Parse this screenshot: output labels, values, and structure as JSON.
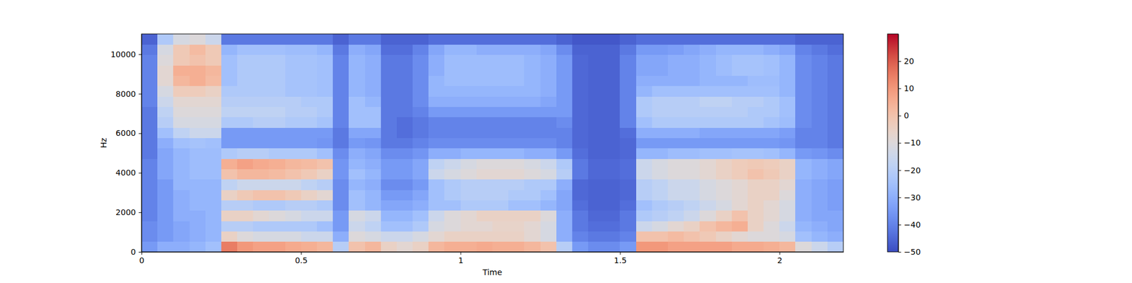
{
  "chart_data": {
    "type": "heatmap",
    "x_label": "Time",
    "y_label": "Hz",
    "color": "coolwarm",
    "xlim": [
      0,
      2.2
    ],
    "ylim": [
      0,
      11025
    ],
    "xticks": [
      0,
      0.5,
      1,
      1.5,
      2
    ],
    "yticks": [
      0,
      2000,
      4000,
      6000,
      8000,
      10000
    ],
    "x_edges": [
      0,
      0.05,
      0.1,
      0.15,
      0.2,
      0.25,
      0.3,
      0.35,
      0.4,
      0.45,
      0.5,
      0.55,
      0.6,
      0.65,
      0.7,
      0.75,
      0.8,
      0.85,
      0.9,
      0.95,
      1,
      1.05,
      1.1,
      1.15,
      1.2,
      1.25,
      1.3,
      1.35,
      1.4,
      1.45,
      1.5,
      1.55,
      1.6,
      1.65,
      1.7,
      1.75,
      1.8,
      1.85,
      1.9,
      1.95,
      2,
      2.05,
      2.1,
      2.15,
      2.2
    ],
    "y_edges": [
      0,
      525,
      1050,
      1575,
      2100,
      2625,
      3150,
      3675,
      4200,
      4725,
      5250,
      5775,
      6300,
      6825,
      7350,
      7875,
      8400,
      8925,
      9450,
      9975,
      10500,
      11025
    ],
    "values": [
      [
        -35,
        -30,
        -30,
        -28,
        -25,
        15,
        10,
        8,
        8,
        6,
        5,
        3,
        -20,
        0,
        3,
        -5,
        -8,
        -5,
        3,
        5,
        5,
        6,
        5,
        5,
        3,
        0,
        -20,
        -35,
        -38,
        -38,
        -35,
        10,
        10,
        8,
        8,
        8,
        8,
        6,
        6,
        5,
        3,
        -10,
        -15,
        -20
      ],
      [
        -38,
        -35,
        -32,
        -30,
        -28,
        -5,
        -10,
        -12,
        -12,
        -12,
        -15,
        -15,
        -30,
        -10,
        -12,
        -15,
        -15,
        -12,
        -8,
        -5,
        -5,
        -5,
        -5,
        -5,
        -8,
        -12,
        -30,
        -40,
        -42,
        -42,
        -40,
        0,
        0,
        2,
        0,
        -2,
        -5,
        -8,
        -10,
        -10,
        -12,
        -25,
        -28,
        -30
      ],
      [
        -38,
        -35,
        -32,
        -30,
        -28,
        -20,
        -20,
        -22,
        -22,
        -22,
        -22,
        -25,
        -35,
        -15,
        -18,
        -25,
        -25,
        -22,
        -12,
        -10,
        -8,
        -8,
        -6,
        -6,
        -8,
        -12,
        -30,
        -42,
        -44,
        -44,
        -42,
        -15,
        -12,
        -8,
        -5,
        0,
        3,
        5,
        -5,
        -10,
        -15,
        -28,
        -30,
        -32
      ],
      [
        -40,
        -35,
        -30,
        -30,
        -28,
        -5,
        -5,
        -8,
        -10,
        -12,
        -15,
        -15,
        -35,
        -12,
        -15,
        -28,
        -28,
        -25,
        -15,
        -10,
        -8,
        -5,
        -5,
        -5,
        -5,
        -10,
        -30,
        -42,
        -45,
        -45,
        -42,
        -22,
        -20,
        -18,
        -15,
        -10,
        -5,
        0,
        -5,
        -8,
        -12,
        -30,
        -32,
        -32
      ],
      [
        -40,
        -35,
        -30,
        -28,
        -28,
        -20,
        -20,
        -22,
        -22,
        -20,
        -20,
        -22,
        -38,
        -25,
        -28,
        -32,
        -32,
        -30,
        -25,
        -25,
        -22,
        -22,
        -22,
        -25,
        -25,
        -28,
        -32,
        -44,
        -46,
        -46,
        -44,
        -25,
        -22,
        -20,
        -18,
        -15,
        -12,
        -8,
        -5,
        -8,
        -12,
        -30,
        -32,
        -34
      ],
      [
        -40,
        -35,
        -30,
        -28,
        -28,
        -5,
        -2,
        0,
        0,
        -2,
        -5,
        -8,
        -38,
        -25,
        -28,
        -35,
        -35,
        -32,
        -25,
        -22,
        -20,
        -20,
        -20,
        -22,
        -22,
        -25,
        -32,
        -45,
        -46,
        -46,
        -45,
        -20,
        -18,
        -15,
        -15,
        -12,
        -10,
        -8,
        -5,
        -5,
        -10,
        -30,
        -32,
        -34
      ],
      [
        -40,
        -35,
        -28,
        -28,
        -28,
        -18,
        -15,
        -15,
        -15,
        -15,
        -18,
        -20,
        -38,
        -28,
        -30,
        -38,
        -38,
        -35,
        -25,
        -22,
        -20,
        -20,
        -20,
        -20,
        -22,
        -22,
        -30,
        -45,
        -46,
        -46,
        -45,
        -20,
        -18,
        -15,
        -15,
        -12,
        -10,
        -8,
        -5,
        -5,
        -8,
        -30,
        -32,
        -34
      ],
      [
        -40,
        -32,
        -28,
        -26,
        -26,
        0,
        3,
        3,
        2,
        0,
        -2,
        -5,
        -36,
        -25,
        -28,
        -35,
        -35,
        -32,
        -15,
        -12,
        -10,
        -8,
        -8,
        -8,
        -10,
        -12,
        -20,
        -42,
        -45,
        -45,
        -44,
        -15,
        -12,
        -10,
        -10,
        -8,
        -5,
        -3,
        0,
        -2,
        -5,
        -28,
        -30,
        -32
      ],
      [
        -40,
        -32,
        -28,
        -26,
        -26,
        5,
        8,
        6,
        5,
        3,
        2,
        0,
        -36,
        -28,
        -30,
        -35,
        -35,
        -32,
        -18,
        -15,
        -12,
        -10,
        -10,
        -10,
        -12,
        -15,
        -22,
        -42,
        -45,
        -45,
        -44,
        -15,
        -12,
        -10,
        -10,
        -8,
        -5,
        -3,
        -2,
        -3,
        -5,
        -28,
        -30,
        -32
      ],
      [
        -42,
        -32,
        -28,
        -26,
        -26,
        -22,
        -20,
        -20,
        -22,
        -22,
        -22,
        -25,
        -38,
        -30,
        -32,
        -38,
        -38,
        -36,
        -30,
        -30,
        -28,
        -28,
        -28,
        -28,
        -30,
        -30,
        -35,
        -44,
        -46,
        -46,
        -45,
        -28,
        -28,
        -26,
        -26,
        -25,
        -25,
        -24,
        -24,
        -25,
        -28,
        -35,
        -36,
        -38
      ],
      [
        -42,
        -30,
        -25,
        -24,
        -25,
        -35,
        -35,
        -35,
        -35,
        -35,
        -35,
        -36,
        -42,
        -35,
        -36,
        -42,
        -42,
        -40,
        -38,
        -38,
        -38,
        -38,
        -38,
        -38,
        -38,
        -38,
        -40,
        -45,
        -46,
        -46,
        -45,
        -35,
        -35,
        -35,
        -35,
        -35,
        -35,
        -35,
        -35,
        -35,
        -36,
        -40,
        -40,
        -42
      ],
      [
        -42,
        -25,
        -18,
        -15,
        -15,
        -35,
        -35,
        -35,
        -35,
        -35,
        -35,
        -35,
        -42,
        -32,
        -32,
        -42,
        -44,
        -42,
        -40,
        -40,
        -40,
        -40,
        -40,
        -40,
        -40,
        -40,
        -40,
        -45,
        -46,
        -46,
        -44,
        -30,
        -30,
        -30,
        -30,
        -32,
        -32,
        -32,
        -32,
        -32,
        -34,
        -40,
        -40,
        -42
      ],
      [
        -42,
        -20,
        -12,
        -12,
        -12,
        -22,
        -22,
        -20,
        -20,
        -22,
        -22,
        -24,
        -40,
        -25,
        -25,
        -42,
        -44,
        -42,
        -40,
        -40,
        -40,
        -40,
        -40,
        -40,
        -40,
        -40,
        -38,
        -45,
        -46,
        -46,
        -40,
        -25,
        -22,
        -22,
        -22,
        -22,
        -22,
        -22,
        -22,
        -24,
        -26,
        -38,
        -40,
        -42
      ],
      [
        -42,
        -18,
        -10,
        -10,
        -10,
        -18,
        -18,
        -18,
        -18,
        -20,
        -20,
        -22,
        -40,
        -25,
        -25,
        -42,
        -42,
        -40,
        -35,
        -35,
        -35,
        -35,
        -35,
        -35,
        -35,
        -35,
        -35,
        -45,
        -46,
        -46,
        -40,
        -22,
        -20,
        -20,
        -20,
        -20,
        -20,
        -20,
        -22,
        -22,
        -25,
        -38,
        -40,
        -42
      ],
      [
        -40,
        -15,
        -8,
        -8,
        -8,
        -20,
        -20,
        -20,
        -20,
        -20,
        -22,
        -22,
        -40,
        -25,
        -28,
        -42,
        -42,
        -38,
        -30,
        -30,
        -30,
        -30,
        -30,
        -30,
        -30,
        -32,
        -35,
        -45,
        -46,
        -46,
        -40,
        -22,
        -20,
        -20,
        -20,
        -18,
        -18,
        -20,
        -20,
        -22,
        -25,
        -38,
        -40,
        -42
      ],
      [
        -40,
        -12,
        -3,
        -3,
        -5,
        -22,
        -22,
        -22,
        -22,
        -24,
        -24,
        -25,
        -40,
        -28,
        -30,
        -42,
        -42,
        -38,
        -28,
        -28,
        -28,
        -28,
        -28,
        -28,
        -28,
        -30,
        -35,
        -45,
        -46,
        -46,
        -40,
        -28,
        -25,
        -25,
        -25,
        -25,
        -25,
        -25,
        -25,
        -25,
        -28,
        -38,
        -40,
        -42
      ],
      [
        -40,
        -8,
        3,
        5,
        2,
        -25,
        -22,
        -22,
        -22,
        -24,
        -24,
        -25,
        -40,
        -28,
        -30,
        -42,
        -42,
        -38,
        -28,
        -26,
        -26,
        -26,
        -26,
        -26,
        -28,
        -30,
        -35,
        -45,
        -46,
        -46,
        -40,
        -30,
        -30,
        -30,
        -30,
        -28,
        -28,
        -28,
        -26,
        -26,
        -28,
        -38,
        -40,
        -42
      ],
      [
        -40,
        -8,
        5,
        5,
        3,
        -25,
        -22,
        -22,
        -22,
        -24,
        -24,
        -25,
        -40,
        -28,
        -30,
        -42,
        -42,
        -38,
        -30,
        -26,
        -26,
        -26,
        -26,
        -26,
        -28,
        -30,
        -35,
        -45,
        -46,
        -46,
        -40,
        -32,
        -32,
        -30,
        -30,
        -28,
        -26,
        -24,
        -24,
        -25,
        -28,
        -38,
        -40,
        -42
      ],
      [
        -40,
        -10,
        -2,
        0,
        -2,
        -25,
        -22,
        -22,
        -22,
        -24,
        -24,
        -25,
        -40,
        -28,
        -30,
        -42,
        -42,
        -38,
        -30,
        -26,
        -26,
        -26,
        -26,
        -26,
        -28,
        -30,
        -35,
        -45,
        -46,
        -46,
        -40,
        -32,
        -32,
        -30,
        -30,
        -28,
        -26,
        -24,
        -24,
        -25,
        -28,
        -38,
        -40,
        -42
      ],
      [
        -42,
        -12,
        -2,
        2,
        -2,
        -28,
        -25,
        -25,
        -25,
        -26,
        -26,
        -28,
        -42,
        -30,
        -32,
        -44,
        -44,
        -40,
        -32,
        -28,
        -28,
        -30,
        -30,
        -30,
        -30,
        -32,
        -38,
        -46,
        -46,
        -46,
        -42,
        -35,
        -35,
        -34,
        -32,
        -30,
        -28,
        -28,
        -28,
        -30,
        -32,
        -40,
        -42,
        -44
      ],
      [
        -46,
        -22,
        -12,
        -10,
        -15,
        -42,
        -42,
        -42,
        -42,
        -42,
        -42,
        -42,
        -46,
        -42,
        -42,
        -46,
        -46,
        -46,
        -44,
        -44,
        -44,
        -44,
        -44,
        -44,
        -44,
        -44,
        -46,
        -48,
        -48,
        -48,
        -46,
        -44,
        -44,
        -44,
        -44,
        -44,
        -44,
        -44,
        -44,
        -44,
        -44,
        -46,
        -46,
        -46
      ]
    ],
    "colorbar": {
      "lim": [
        -50,
        30
      ],
      "ticks": [
        20,
        10,
        0,
        {
          "value": -10,
          "label": "−10"
        },
        {
          "value": -20,
          "label": "−20"
        },
        {
          "value": -30,
          "label": "−30"
        },
        {
          "value": -40,
          "label": "−40"
        },
        {
          "value": -50,
          "label": "−50"
        }
      ]
    }
  }
}
